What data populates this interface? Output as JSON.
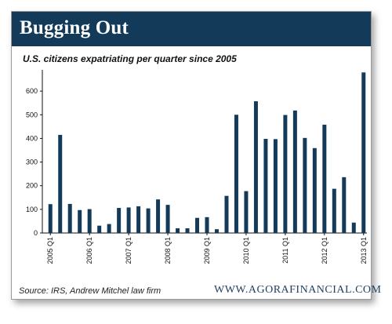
{
  "header": {
    "title": "Bugging Out"
  },
  "chart_data": {
    "type": "bar",
    "title": "U.S. citizens expatriating per quarter since 2005",
    "xlabel": "",
    "ylabel": "",
    "ylim": [
      0,
      690
    ],
    "yticks": [
      0,
      100,
      200,
      300,
      400,
      500,
      600
    ],
    "grid": false,
    "bar_color": "#143a59",
    "categories": [
      "2005 Q1",
      "2005 Q2",
      "2005 Q3",
      "2005 Q4",
      "2006 Q1",
      "2006 Q2",
      "2006 Q3",
      "2006 Q4",
      "2007 Q1",
      "2007 Q2",
      "2007 Q3",
      "2007 Q4",
      "2008 Q1",
      "2008 Q2",
      "2008 Q3",
      "2008 Q4",
      "2009 Q1",
      "2009 Q2",
      "2009 Q3",
      "2009 Q4",
      "2010 Q1",
      "2010 Q2",
      "2010 Q3",
      "2010 Q4",
      "2011 Q1",
      "2011 Q2",
      "2011 Q3",
      "2011 Q4",
      "2012 Q1",
      "2012 Q2",
      "2012 Q3",
      "2012 Q4",
      "2013 Q1"
    ],
    "values": [
      122,
      415,
      123,
      97,
      101,
      31,
      38,
      106,
      108,
      113,
      104,
      142,
      119,
      20,
      20,
      64,
      67,
      16,
      157,
      500,
      177,
      557,
      398,
      397,
      499,
      518,
      402,
      359,
      458,
      187,
      236,
      44,
      679
    ],
    "tick_labels": [
      "2005 Q1",
      "2006 Q1",
      "2007 Q1",
      "2008 Q1",
      "2009 Q1",
      "2010 Q1",
      "2011 Q1",
      "2012 Q1",
      "2013 Q1"
    ]
  },
  "footer": {
    "source": "Source:  IRS, Andrew Mitchel law firm",
    "site": "WWW.AGORAFINANCIAL.COM"
  }
}
